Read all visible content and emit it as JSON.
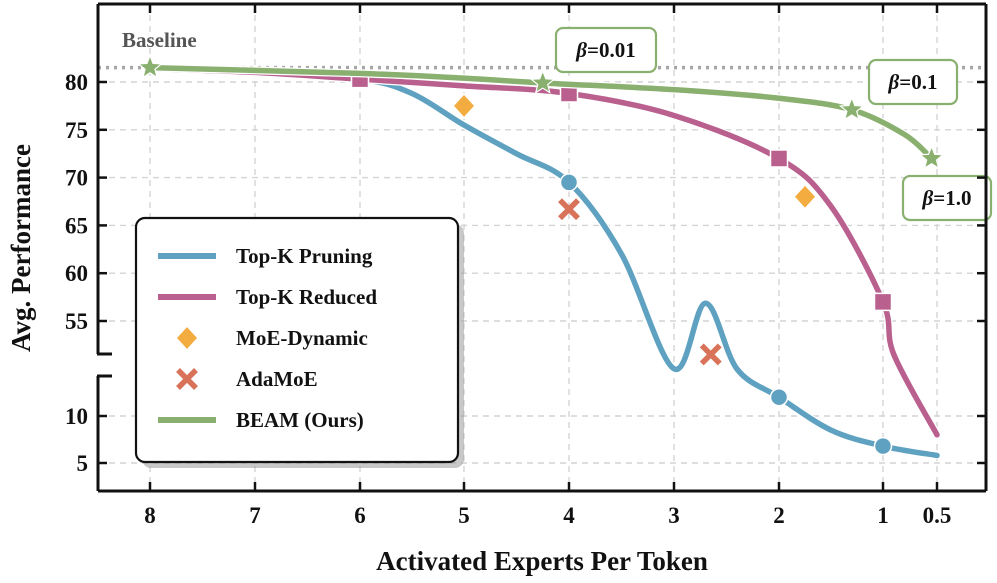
{
  "chart_data": {
    "type": "line",
    "xlabel": "Activated Experts Per Token",
    "ylabel": "Avg. Performance",
    "x_ticks": [
      "8",
      "7",
      "6",
      "5",
      "4",
      "3",
      "2",
      "1",
      "0.5"
    ],
    "y_ticks_upper": [
      "80",
      "75",
      "70",
      "65",
      "60",
      "55"
    ],
    "y_ticks_lower": [
      "10",
      "5"
    ],
    "ylim_upper": [
      51,
      87
    ],
    "ylim_lower": [
      3,
      13.5
    ],
    "y_axis_break": true,
    "grid": true,
    "legend_position": "lower-left",
    "baseline": {
      "label": "Baseline",
      "value": 81.5,
      "color": "#a6a6a6"
    },
    "series": [
      {
        "name": "Top-K Pruning",
        "type": "line",
        "color": "#5fa1c0",
        "curve": [
          [
            8,
            81.6
          ],
          [
            7,
            81.0
          ],
          [
            6,
            80.3
          ],
          [
            5.5,
            78.8
          ],
          [
            5,
            75.5
          ],
          [
            4.5,
            72.5
          ],
          [
            4,
            69.5
          ],
          [
            3.5,
            62.0
          ],
          [
            3,
            50.0
          ],
          [
            2.7,
            22.0
          ],
          [
            2.4,
            15.0
          ],
          [
            2,
            12.0
          ],
          [
            1.5,
            8.5
          ],
          [
            1,
            6.8
          ],
          [
            0.5,
            5.8
          ]
        ],
        "markers": [
          [
            6,
            80.3
          ],
          [
            4,
            69.5
          ],
          [
            2,
            12.0
          ],
          [
            1,
            6.8
          ]
        ],
        "marker": "circle"
      },
      {
        "name": "Top-K Reduced",
        "type": "line",
        "color": "#b9608f",
        "curve": [
          [
            8,
            81.4
          ],
          [
            7,
            81.0
          ],
          [
            6,
            80.3
          ],
          [
            5,
            79.6
          ],
          [
            4,
            78.8
          ],
          [
            3,
            76.5
          ],
          [
            2,
            72.0
          ],
          [
            1.5,
            67.0
          ],
          [
            1,
            57.0
          ],
          [
            0.9,
            51.5
          ],
          [
            0.5,
            8.0
          ]
        ],
        "markers": [
          [
            6,
            80.3
          ],
          [
            4,
            78.8
          ],
          [
            2,
            72.0
          ],
          [
            1,
            57.0
          ]
        ],
        "marker": "square"
      },
      {
        "name": "MoE-Dynamic",
        "type": "scatter",
        "color": "#f3ac3f",
        "points": [
          [
            5,
            77.5
          ],
          [
            1.75,
            68.0
          ]
        ],
        "marker": "diamond"
      },
      {
        "name": "AdaMoE",
        "type": "scatter",
        "color": "#d8735a",
        "points": [
          [
            4,
            66.7
          ],
          [
            2.65,
            51.5
          ]
        ],
        "marker": "x"
      },
      {
        "name": "BEAM (Ours)",
        "type": "line",
        "color": "#8ab06f",
        "curve": [
          [
            8,
            81.5
          ],
          [
            6,
            80.9
          ],
          [
            5,
            80.4
          ],
          [
            4.25,
            79.9
          ],
          [
            3,
            79.2
          ],
          [
            2,
            78.3
          ],
          [
            1.3,
            77.1
          ],
          [
            0.8,
            74.5
          ],
          [
            0.55,
            72.0
          ]
        ],
        "markers": [
          [
            8,
            81.5
          ],
          [
            4.25,
            79.9
          ],
          [
            1.3,
            77.1
          ],
          [
            0.55,
            72.0
          ]
        ],
        "marker": "star"
      }
    ],
    "annotations": [
      {
        "text": "β=0.01",
        "greek": "β",
        "rest": "=0.01",
        "point": [
          4.25,
          79.9
        ]
      },
      {
        "text": "β=0.1",
        "greek": "β",
        "rest": "=0.1",
        "point": [
          1.3,
          77.1
        ]
      },
      {
        "text": "β=1.0",
        "greek": "β",
        "rest": "=1.0",
        "point": [
          0.55,
          72.0
        ]
      }
    ]
  }
}
